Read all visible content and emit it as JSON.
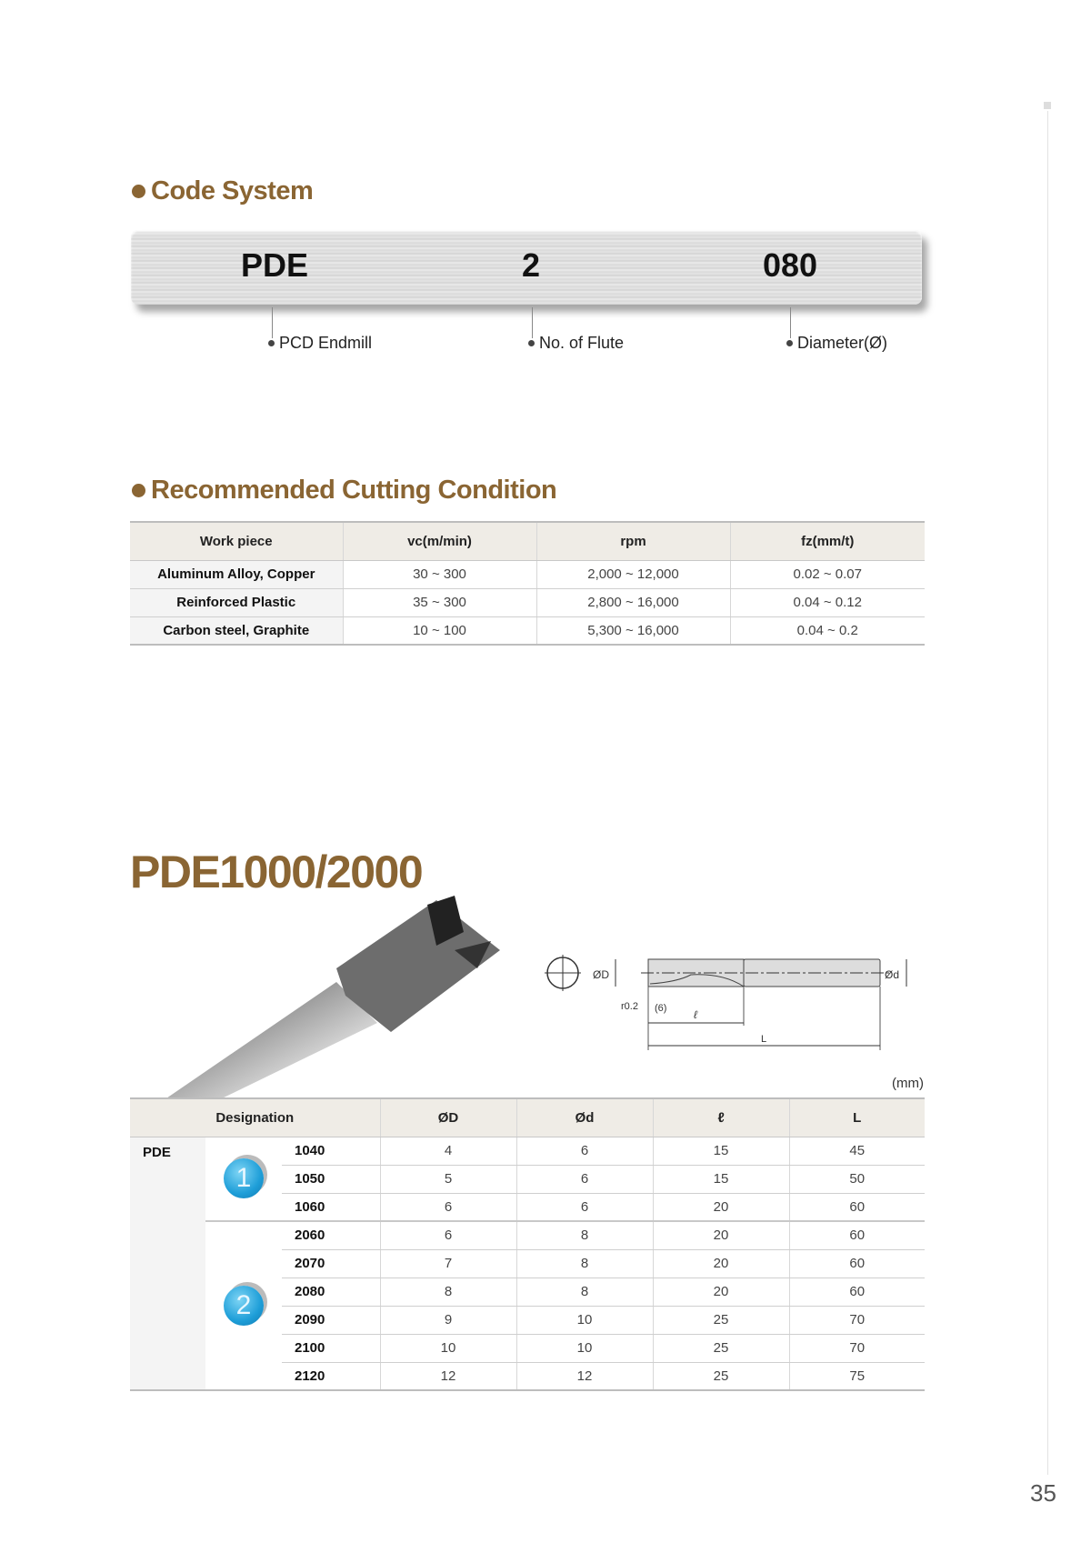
{
  "code_system": {
    "heading": "Code System",
    "parts": [
      "PDE",
      "2",
      "080"
    ],
    "labels": [
      "PCD Endmill",
      "No. of Flute",
      "Diameter(Ø)"
    ]
  },
  "cutting": {
    "heading": "Recommended Cutting Condition",
    "columns": [
      "Work piece",
      "vc(m/min)",
      "rpm",
      "fz(mm/t)"
    ],
    "rows": [
      [
        "Aluminum Alloy, Copper",
        "30 ~ 300",
        "2,000 ~ 12,000",
        "0.02 ~ 0.07"
      ],
      [
        "Reinforced Plastic",
        "35 ~ 300",
        "2,800 ~ 16,000",
        "0.04 ~ 0.12"
      ],
      [
        "Carbon steel, Graphite",
        "10 ~ 100",
        "5,300 ~ 16,000",
        "0.04 ~ 0.2"
      ]
    ]
  },
  "product": {
    "title": "PDE1000/2000",
    "diagram": {
      "od": "ØD",
      "sd": "Ød",
      "radius": "r0.2",
      "six": "(6)",
      "l": "ℓ",
      "L": "L"
    },
    "unit": "(mm)",
    "columns": [
      "Designation",
      "ØD",
      "Ød",
      "ℓ",
      "L"
    ],
    "series": "PDE",
    "groups": [
      "1",
      "2"
    ],
    "rows": [
      [
        "1040",
        "4",
        "6",
        "15",
        "45"
      ],
      [
        "1050",
        "5",
        "6",
        "15",
        "50"
      ],
      [
        "1060",
        "6",
        "6",
        "20",
        "60"
      ],
      [
        "2060",
        "6",
        "8",
        "20",
        "60"
      ],
      [
        "2070",
        "7",
        "8",
        "20",
        "60"
      ],
      [
        "2080",
        "8",
        "8",
        "20",
        "60"
      ],
      [
        "2090",
        "9",
        "10",
        "25",
        "70"
      ],
      [
        "2100",
        "10",
        "10",
        "25",
        "70"
      ],
      [
        "2120",
        "12",
        "12",
        "25",
        "75"
      ]
    ]
  },
  "page_number": "35",
  "colors": {
    "heading": "#8a6533",
    "badge": "#1e9ed8",
    "header_bg": "#efece6"
  }
}
